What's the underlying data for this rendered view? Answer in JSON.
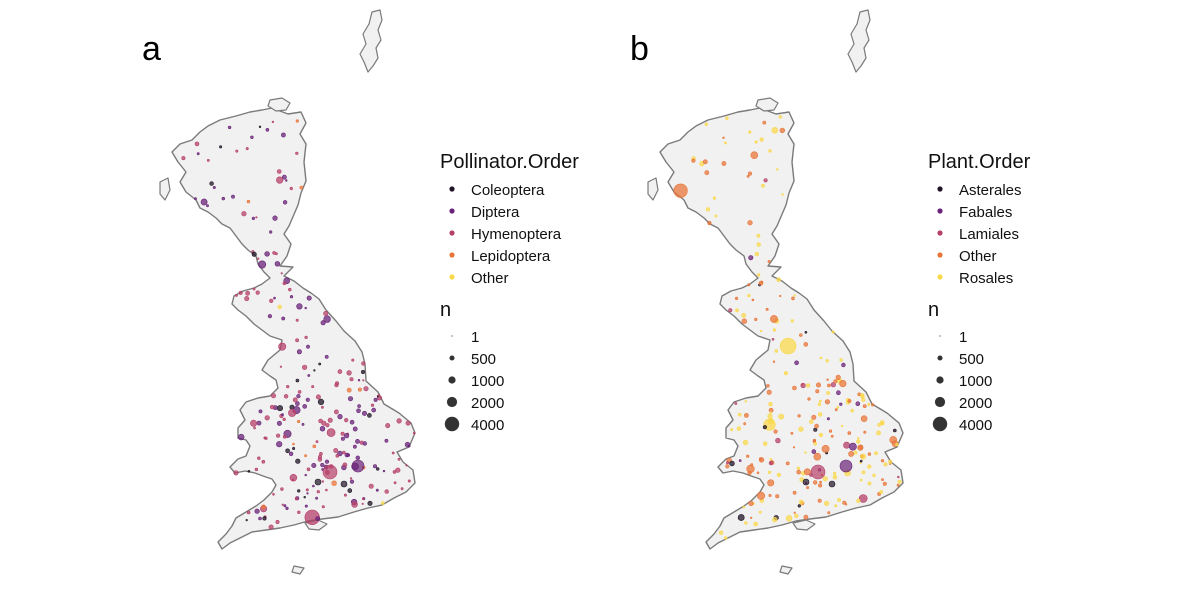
{
  "panels": [
    {
      "id": "a",
      "label": "a",
      "color_legend": {
        "title": "Pollinator.Order",
        "entries": [
          {
            "name": "Coleoptera",
            "color": "#1f1425"
          },
          {
            "name": "Diptera",
            "color": "#6a2378"
          },
          {
            "name": "Hymenoptera",
            "color": "#b6406a"
          },
          {
            "name": "Lepidoptera",
            "color": "#e8763a"
          },
          {
            "name": "Other",
            "color": "#f9d84c"
          }
        ]
      },
      "size_legend": {
        "title": "n",
        "entries": [
          "1",
          "500",
          "1000",
          "2000",
          "4000"
        ],
        "values": [
          1,
          500,
          1000,
          2000,
          4000
        ]
      }
    },
    {
      "id": "b",
      "label": "b",
      "color_legend": {
        "title": "Plant.Order",
        "entries": [
          {
            "name": "Asterales",
            "color": "#1f1425"
          },
          {
            "name": "Fabales",
            "color": "#6a2378"
          },
          {
            "name": "Lamiales",
            "color": "#b6406a"
          },
          {
            "name": "Other",
            "color": "#e8763a"
          },
          {
            "name": "Rosales",
            "color": "#f9d84c"
          }
        ]
      },
      "size_legend": {
        "title": "n",
        "entries": [
          "1",
          "500",
          "1000",
          "2000",
          "4000"
        ],
        "values": [
          1,
          500,
          1000,
          2000,
          4000
        ]
      }
    }
  ]
}
